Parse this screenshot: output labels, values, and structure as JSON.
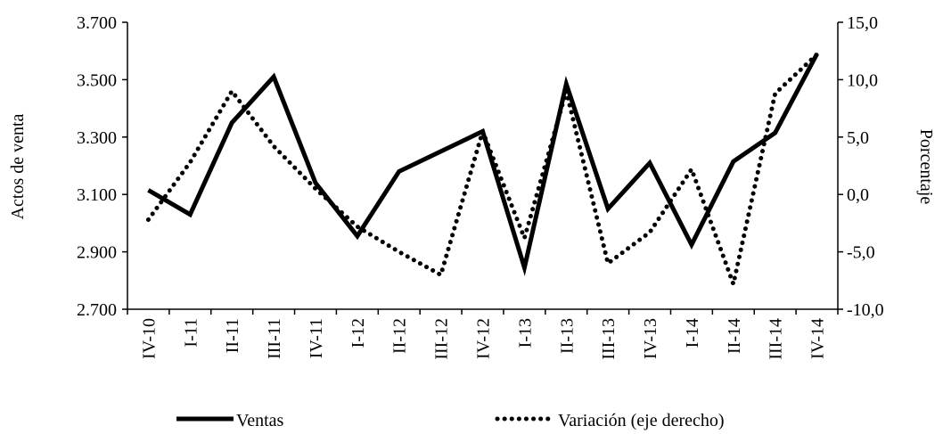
{
  "chart_data": {
    "type": "line",
    "categories": [
      "IV-10",
      "I-11",
      "II-11",
      "III-11",
      "IV-11",
      "I-12",
      "II-12",
      "III-12",
      "IV-12",
      "I-13",
      "II-13",
      "III-13",
      "IV-13",
      "I-14",
      "II-14",
      "III-14",
      "IV-14"
    ],
    "series": [
      {
        "name": "Ventas",
        "axis": "left",
        "style": "solid",
        "values": [
          3115,
          3030,
          3350,
          3510,
          3140,
          2955,
          3180,
          3250,
          3320,
          2845,
          3485,
          3050,
          3210,
          2925,
          3215,
          3315,
          3590
        ]
      },
      {
        "name": "Variación (eje derecho)",
        "axis": "right",
        "style": "dotted",
        "values": [
          -2.2,
          2.8,
          9.0,
          4.2,
          0.5,
          -2.8,
          -5.0,
          -7.0,
          5.5,
          -3.8,
          9.0,
          -6.0,
          -3.3,
          2.2,
          -7.8,
          8.8,
          12.2
        ]
      }
    ],
    "ylabel": "Actos de venta",
    "y2label": "Porcentaje",
    "ylim": [
      2700,
      3700
    ],
    "y2lim": [
      -10,
      15
    ],
    "yticks": [
      "2.700",
      "2.900",
      "3.100",
      "3.300",
      "3.500",
      "3.700"
    ],
    "y2ticks": [
      "-10,0",
      "-5,0",
      "0,0",
      "5,0",
      "10,0",
      "15,0"
    ],
    "legend_position": "bottom",
    "grid": false,
    "color": "#000000"
  }
}
